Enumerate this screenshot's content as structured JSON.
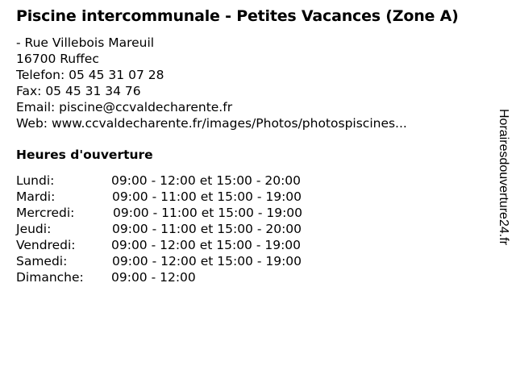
{
  "title": "Piscine intercommunale - Petites Vacances (Zone A)",
  "address": {
    "street": "- Rue Villebois Mareuil",
    "city": "16700 Ruffec",
    "phone": "Telefon: 05 45 31 07 28",
    "fax": "Fax: 05 45 31 34 76",
    "email": "Email: piscine@ccvaldecharente.fr",
    "web": "Web: www.ccvaldecharente.fr/images/Photos/photospiscines..."
  },
  "hours_title": "Heures d'ouverture",
  "hours": [
    {
      "day": "Lundi:",
      "time": "09:00 - 12:00 et 15:00 - 20:00"
    },
    {
      "day": "Mardi:",
      "time": "09:00 - 11:00 et 15:00 - 19:00"
    },
    {
      "day": "Mercredi:",
      "time": "09:00 - 11:00 et 15:00 - 19:00"
    },
    {
      "day": "Jeudi:",
      "time": "09:00 - 11:00 et 15:00 - 20:00"
    },
    {
      "day": "Vendredi:",
      "time": "09:00 - 12:00 et 15:00 - 19:00"
    },
    {
      "day": "Samedi:",
      "time": "09:00 - 12:00 et 15:00 - 19:00"
    },
    {
      "day": "Dimanche:",
      "time": "09:00 - 12:00"
    }
  ],
  "watermark": "Horairesdouverture24.fr"
}
